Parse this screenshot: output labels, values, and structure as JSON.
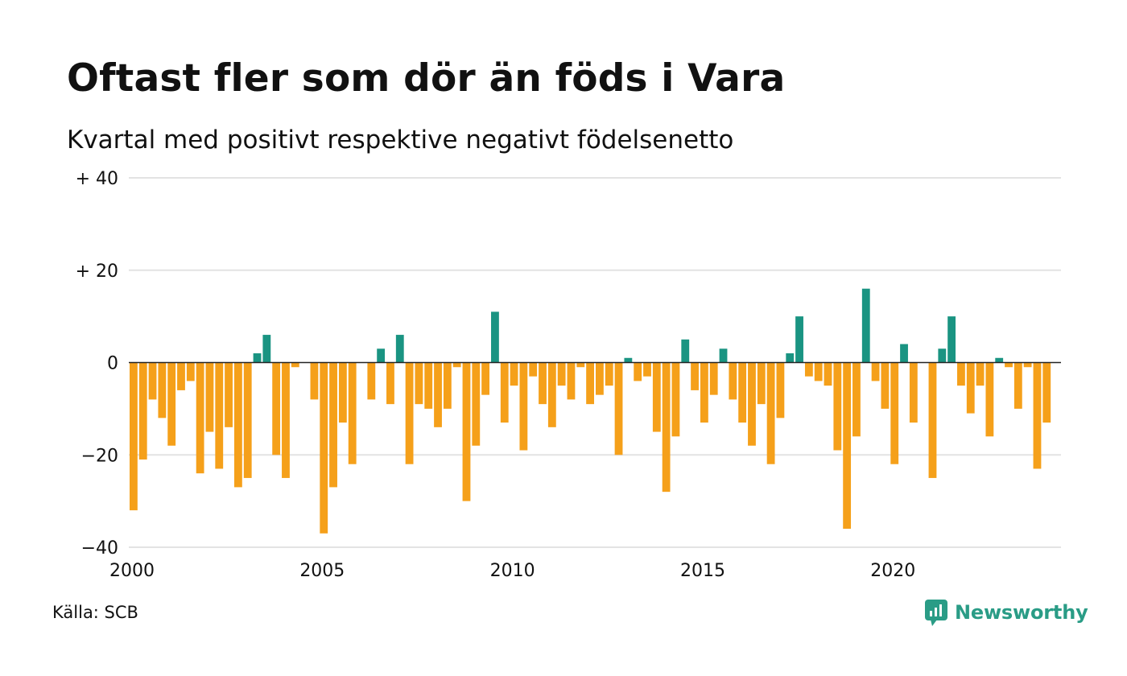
{
  "title": "Oftast fler som dör än föds i Vara",
  "subtitle": "Kvartal med positivt respektive negativt födelsenetto",
  "source": "Källa: SCB",
  "brand": {
    "name": "Newsworthy",
    "icon": "newsworthy-logo-icon"
  },
  "colors": {
    "positive": "#1a9482",
    "negative": "#f5a01a",
    "grid": "#e3e3e3",
    "zero": "#222222"
  },
  "chart_data": {
    "type": "bar",
    "x_start": 2000.0,
    "x_step": 0.25,
    "xlim": [
      2000,
      2024.5
    ],
    "ylim": [
      -40,
      40
    ],
    "y_ticks": [
      {
        "value": 40,
        "label": "+ 40"
      },
      {
        "value": 20,
        "label": "+ 20"
      },
      {
        "value": 0,
        "label": "0"
      },
      {
        "value": -20,
        "label": "−20"
      },
      {
        "value": -40,
        "label": "−40"
      }
    ],
    "x_ticks": [
      {
        "value": 2000,
        "label": "2000"
      },
      {
        "value": 2005,
        "label": "2005"
      },
      {
        "value": 2010,
        "label": "2010"
      },
      {
        "value": 2015,
        "label": "2015"
      },
      {
        "value": 2020,
        "label": "2020"
      }
    ],
    "values": [
      -32,
      -21,
      -8,
      -12,
      -18,
      -6,
      -4,
      -24,
      -15,
      -23,
      -14,
      -27,
      -25,
      2,
      6,
      -20,
      -25,
      -1,
      0,
      -8,
      -37,
      -27,
      -13,
      -22,
      0,
      -8,
      3,
      -9,
      6,
      -22,
      -9,
      -10,
      -14,
      -10,
      -1,
      -30,
      -18,
      -7,
      11,
      -13,
      -5,
      -19,
      -3,
      -9,
      -14,
      -5,
      -8,
      -1,
      -9,
      -7,
      -5,
      -20,
      1,
      -4,
      -3,
      -15,
      -28,
      -16,
      5,
      -6,
      -13,
      -7,
      3,
      -8,
      -13,
      -18,
      -9,
      -22,
      -12,
      2,
      10,
      -3,
      -4,
      -5,
      -19,
      -36,
      -16,
      16,
      -4,
      -10,
      -22,
      4,
      -13,
      0,
      -25,
      3,
      10,
      -5,
      -11,
      -5,
      -16,
      1,
      -1,
      -10,
      -1,
      -23,
      -13
    ],
    "title": "Oftast fler som dör än föds i Vara",
    "subtitle": "Kvartal med positivt respektive negativt födelsenetto",
    "grid": true
  }
}
